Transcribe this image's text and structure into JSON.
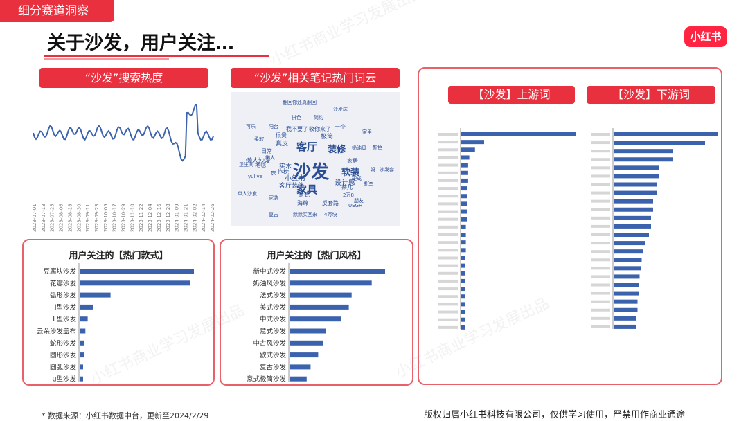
{
  "tag": "细分赛道洞察",
  "title": "关于沙发，用户关注…",
  "logo": "小红书",
  "watermark": "小红书商业学习发展出品",
  "search_heat": {
    "label": "“沙发”搜索热度",
    "dates": [
      "2023-07-01",
      "2023-07-13",
      "2023-07-25",
      "2023-08-06",
      "2023-08-18",
      "2023-08-30",
      "2023-09-11",
      "2023-09-23",
      "2023-10-05",
      "2023-10-17",
      "2023-10-29",
      "2023-11-10",
      "2023-11-22",
      "2023-12-04",
      "2023-12-16",
      "2023-12-28",
      "2024-01-09",
      "2024-01-21",
      "2024-02-02",
      "2024-02-14",
      "2024-02-26"
    ]
  },
  "wordcloud": {
    "label": "“沙发”相关笔记热门词云",
    "words": [
      {
        "t": "沙发",
        "c": "#2a4d94"
      },
      {
        "t": "家具",
        "c": "#2a4d94"
      },
      {
        "t": "客厅",
        "c": "#2a4d94"
      },
      {
        "t": "装修",
        "c": "#2a4d94"
      },
      {
        "t": "软装",
        "c": "#2a4d94"
      },
      {
        "t": "小红书",
        "c": "#2a4d94"
      },
      {
        "t": "设计感",
        "c": "#2a4d94"
      },
      {
        "t": "实木",
        "c": "#2a4d94"
      },
      {
        "t": "懒人沙发",
        "c": "#2a4d94"
      },
      {
        "t": "地毯",
        "c": "#2a4d94"
      },
      {
        "t": "客厅装修",
        "c": "#2a4d94"
      },
      {
        "t": "茶几",
        "c": "#2a4d94"
      },
      {
        "t": "真皮",
        "c": "#2a4d94"
      },
      {
        "t": "极简",
        "c": "#2a4d94"
      },
      {
        "t": "很贵",
        "c": "#2a4d94"
      },
      {
        "t": "奶油风",
        "c": "#2a4d94"
      },
      {
        "t": "家居",
        "c": "#2a4d94"
      },
      {
        "t": "卧室",
        "c": "#2a4d94"
      },
      {
        "t": "家里",
        "c": "#2a4d94"
      },
      {
        "t": "2万8",
        "c": "#2a4d94"
      },
      {
        "t": "单人沙发",
        "c": "#2a4d94"
      },
      {
        "t": "海绵",
        "c": "#2a4d94"
      },
      {
        "t": "反套路",
        "c": "#2a4d94"
      },
      {
        "t": "UEGH",
        "c": "#2a4d94"
      },
      {
        "t": "默默买回来",
        "c": "#2a4d94"
      },
      {
        "t": "4万块",
        "c": "#2a4d94"
      },
      {
        "t": "复古",
        "c": "#2a4d94"
      },
      {
        "t": "朋友",
        "c": "#2a4d94"
      },
      {
        "t": "我不要了",
        "c": "#2a4d94"
      },
      {
        "t": "收你来了",
        "c": "#2a4d94"
      },
      {
        "t": "一个",
        "c": "#2a4d94"
      },
      {
        "t": "沙发床",
        "c": "#2a4d94"
      },
      {
        "t": "颜色",
        "c": "#2a4d94"
      },
      {
        "t": "卫生间",
        "c": "#2a4d94"
      },
      {
        "t": "日常",
        "c": "#2a4d94"
      },
      {
        "t": "柔软",
        "c": "#2a4d94"
      },
      {
        "t": "可乐",
        "c": "#2a4d94"
      },
      {
        "t": "阳台",
        "c": "#2a4d94"
      },
      {
        "t": "拼色",
        "c": "#2a4d94"
      },
      {
        "t": "简约",
        "c": "#2a4d94"
      },
      {
        "t": "床",
        "c": "#2a4d94"
      },
      {
        "t": "抱枕",
        "c": "#2a4d94"
      },
      {
        "t": "意式",
        "c": "#2a4d94"
      },
      {
        "t": "妈",
        "c": "#2a4d94"
      },
      {
        "t": "沙发套",
        "c": "#2a4d94"
      },
      {
        "t": "家装",
        "c": "#2a4d94"
      },
      {
        "t": "yulive",
        "c": "#2a4d94"
      },
      {
        "t": "懒人",
        "c": "#2a4d94"
      },
      {
        "t": "翻回你还真翻回",
        "c": "#2a4d94"
      },
      {
        "t": "硬成",
        "c": "#2a4d94"
      }
    ]
  },
  "hot_styles_kind": {
    "title": "用户关注的【热门款式】",
    "categories": [
      "豆腐块沙发",
      "花瓣沙发",
      "弧形沙发",
      "l型沙发",
      "L型沙发",
      "云朵沙发盖布",
      "蛇形沙发",
      "圆形沙发",
      "圆弧沙发",
      "u型沙发"
    ],
    "values": [
      100,
      97,
      27,
      12,
      7,
      5,
      4,
      4,
      3,
      3
    ]
  },
  "hot_styles_style": {
    "title": "用户关注的【热门风格】",
    "categories": [
      "新中式沙发",
      "奶油风沙发",
      "法式沙发",
      "美式沙发",
      "中式沙发",
      "意式沙发",
      "中古风沙发",
      "欧式沙发",
      "复古沙发",
      "意式极简沙发"
    ],
    "values": [
      100,
      86,
      65,
      62,
      54,
      38,
      35,
      30,
      22,
      18
    ]
  },
  "upstream": {
    "label": "【沙发】上游词",
    "values": [
      100,
      20,
      12,
      7,
      6,
      6,
      6,
      5,
      5,
      5,
      5,
      5,
      4,
      4,
      4,
      4,
      3,
      3,
      3,
      3,
      3,
      3,
      3,
      3,
      3,
      3
    ]
  },
  "downstream": {
    "label": "【沙发】下游词",
    "values": [
      100,
      88,
      57,
      57,
      44,
      44,
      42,
      42,
      38,
      38,
      36,
      36,
      34,
      30,
      28,
      27,
      26,
      25,
      24,
      24,
      23,
      23,
      22,
      22
    ]
  },
  "footer": {
    "source": "* 数据来源：小红书数据中台，更新至2024/2/29",
    "copyright": "版权归属小红书科技有限公司，仅供学习使用，严禁用作商业通途"
  }
}
